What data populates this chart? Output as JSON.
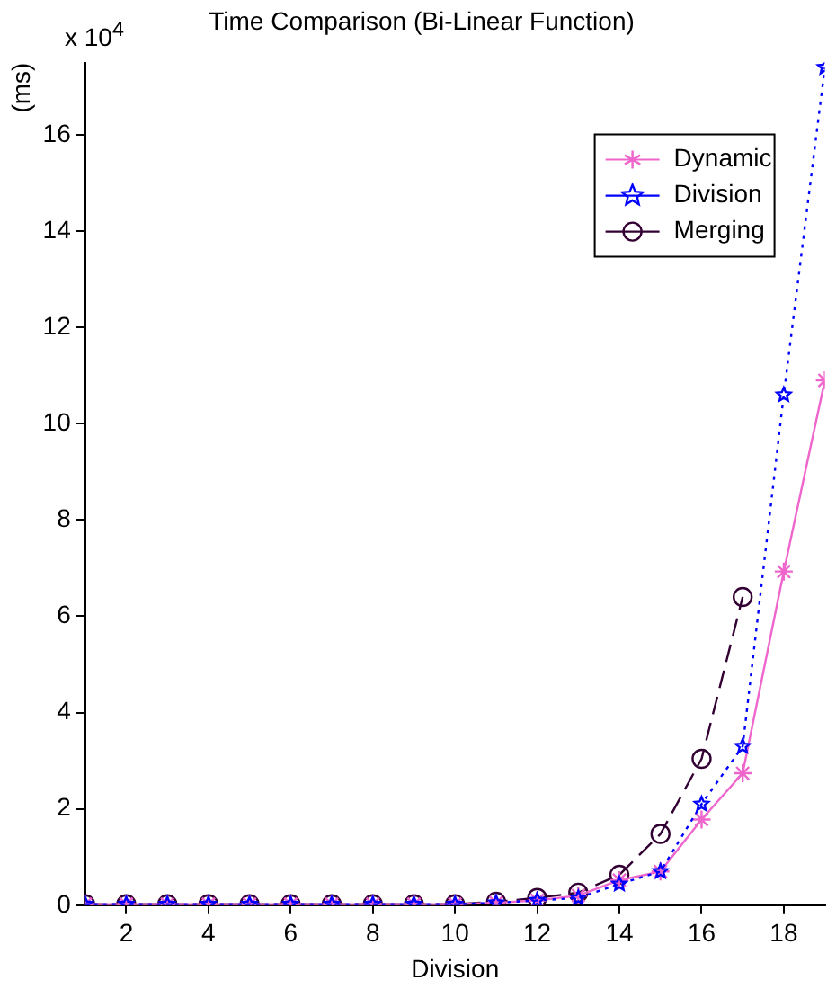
{
  "chart_data": {
    "type": "line",
    "title": "Time Comparison (Bi-Linear Function)",
    "xlabel": "Division",
    "ylabel": "(ms)",
    "annotations": [
      "x 10$^{4}$"
    ],
    "x": [
      1,
      2,
      3,
      4,
      5,
      6,
      7,
      8,
      9,
      10,
      11,
      12,
      13,
      14,
      15,
      16,
      17,
      18,
      19
    ],
    "series": [
      {
        "name": "Dynamic",
        "color": "#ee66cc",
        "marker": "cross",
        "line_style": "solid",
        "values": [
          0.02,
          0.02,
          0.02,
          0.02,
          0.02,
          0.02,
          0.02,
          0.02,
          0.02,
          0.02,
          0.05,
          0.1,
          0.2,
          0.52,
          0.7,
          1.78,
          2.74,
          6.93,
          10.9
        ]
      },
      {
        "name": "Division",
        "color": "#0000ff",
        "marker": "star",
        "line_style": "dotted",
        "values": [
          0.02,
          0.02,
          0.02,
          0.02,
          0.02,
          0.02,
          0.02,
          0.02,
          0.02,
          0.02,
          0.05,
          0.1,
          0.15,
          0.44,
          0.7,
          2.1,
          3.3,
          10.6,
          17.4
        ]
      },
      {
        "name": "Merging",
        "color": "#330033",
        "marker": "circle",
        "line_style": "dashed",
        "values": [
          0.02,
          0.02,
          0.02,
          0.02,
          0.02,
          0.02,
          0.02,
          0.02,
          0.02,
          0.02,
          0.07,
          0.15,
          0.26,
          0.63,
          1.48,
          3.04,
          6.4,
          null,
          null
        ]
      }
    ],
    "xlim": [
      1,
      19
    ],
    "xticks": [
      2,
      4,
      6,
      8,
      10,
      12,
      14,
      16,
      18
    ],
    "ylim": [
      0,
      17.5
    ],
    "yticks": [
      0,
      2,
      4,
      6,
      8,
      10,
      12,
      14,
      16
    ],
    "grid": false,
    "legend": "top right"
  }
}
